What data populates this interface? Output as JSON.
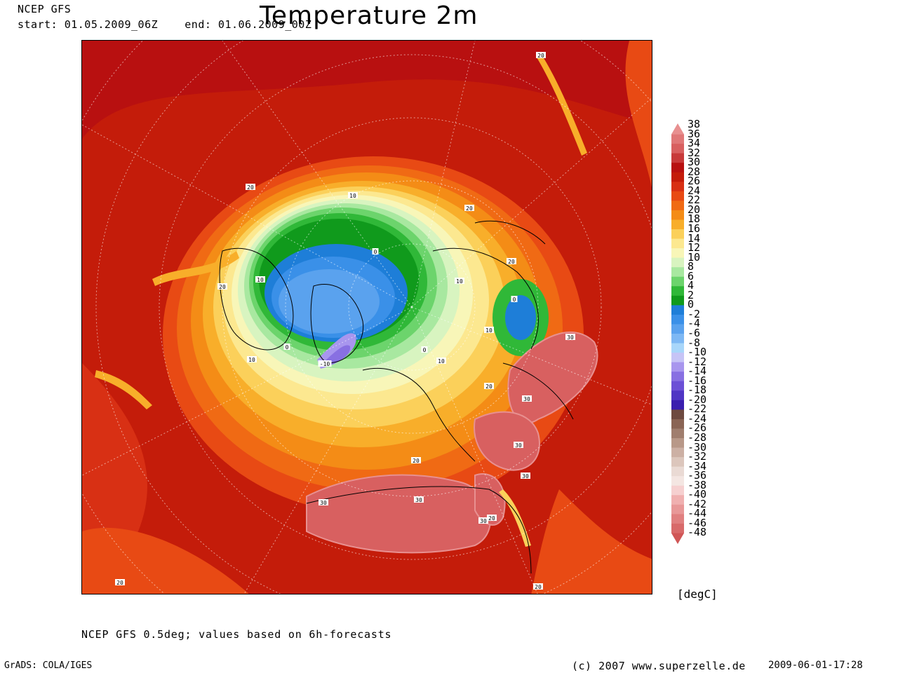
{
  "header": {
    "model": "NCEP GFS",
    "period": "start: 01.05.2009_06Z    end: 01.06.2009_00Z",
    "title": "Temperature 2m"
  },
  "legend": {
    "labels": [
      "38",
      "36",
      "34",
      "32",
      "30",
      "28",
      "26",
      "24",
      "22",
      "20",
      "18",
      "16",
      "14",
      "12",
      "10",
      "8",
      "6",
      "4",
      "2",
      "0",
      "-2",
      "-4",
      "-6",
      "-8",
      "-10",
      "-12",
      "-14",
      "-16",
      "-18",
      "-20",
      "-22",
      "-24",
      "-26",
      "-28",
      "-30",
      "-32",
      "-34",
      "-36",
      "-38",
      "-40",
      "-42",
      "-44",
      "-46",
      "-48"
    ],
    "colors": [
      "#e89090",
      "#e07878",
      "#d86060",
      "#c83a3a",
      "#b81010",
      "#c41c0a",
      "#d83014",
      "#e84a14",
      "#f06a14",
      "#f48c16",
      "#f8ae2a",
      "#fbd05a",
      "#fce890",
      "#f8f6b8",
      "#d8f4c0",
      "#a8e8a0",
      "#6cd46c",
      "#30b838",
      "#109a1c",
      "#1e7ed8",
      "#3a90e8",
      "#5aa2ee",
      "#7eb8f4",
      "#a8d6fa",
      "#c6c4f6",
      "#a896ee",
      "#8870e2",
      "#6c50d6",
      "#5036c4",
      "#3a1eae",
      "#6e4a40",
      "#8a6454",
      "#a07e6e",
      "#b89888",
      "#ccb0a4",
      "#dcc6bc",
      "#eadad4",
      "#f4e6e2",
      "#f6d0d0",
      "#f0b0b0",
      "#e89898",
      "#e08080",
      "#d86a6a",
      "#d05656"
    ],
    "unit": "[degC]"
  },
  "map": {
    "contour_labels": [
      "20",
      "20",
      "20",
      "20",
      "20",
      "20",
      "20",
      "20",
      "20",
      "20",
      "10",
      "10",
      "10",
      "10",
      "10",
      "10",
      "0",
      "0",
      "0",
      "0",
      "-10",
      "30",
      "30",
      "30",
      "30",
      "30",
      "30",
      "30"
    ]
  },
  "footer": {
    "note": "NCEP GFS 0.5deg; values based on 6h-forecasts",
    "grads": "GrADS: COLA/IGES",
    "copyright": "(c) 2007 www.superzelle.de",
    "timestamp": "2009-06-01-17:28"
  }
}
